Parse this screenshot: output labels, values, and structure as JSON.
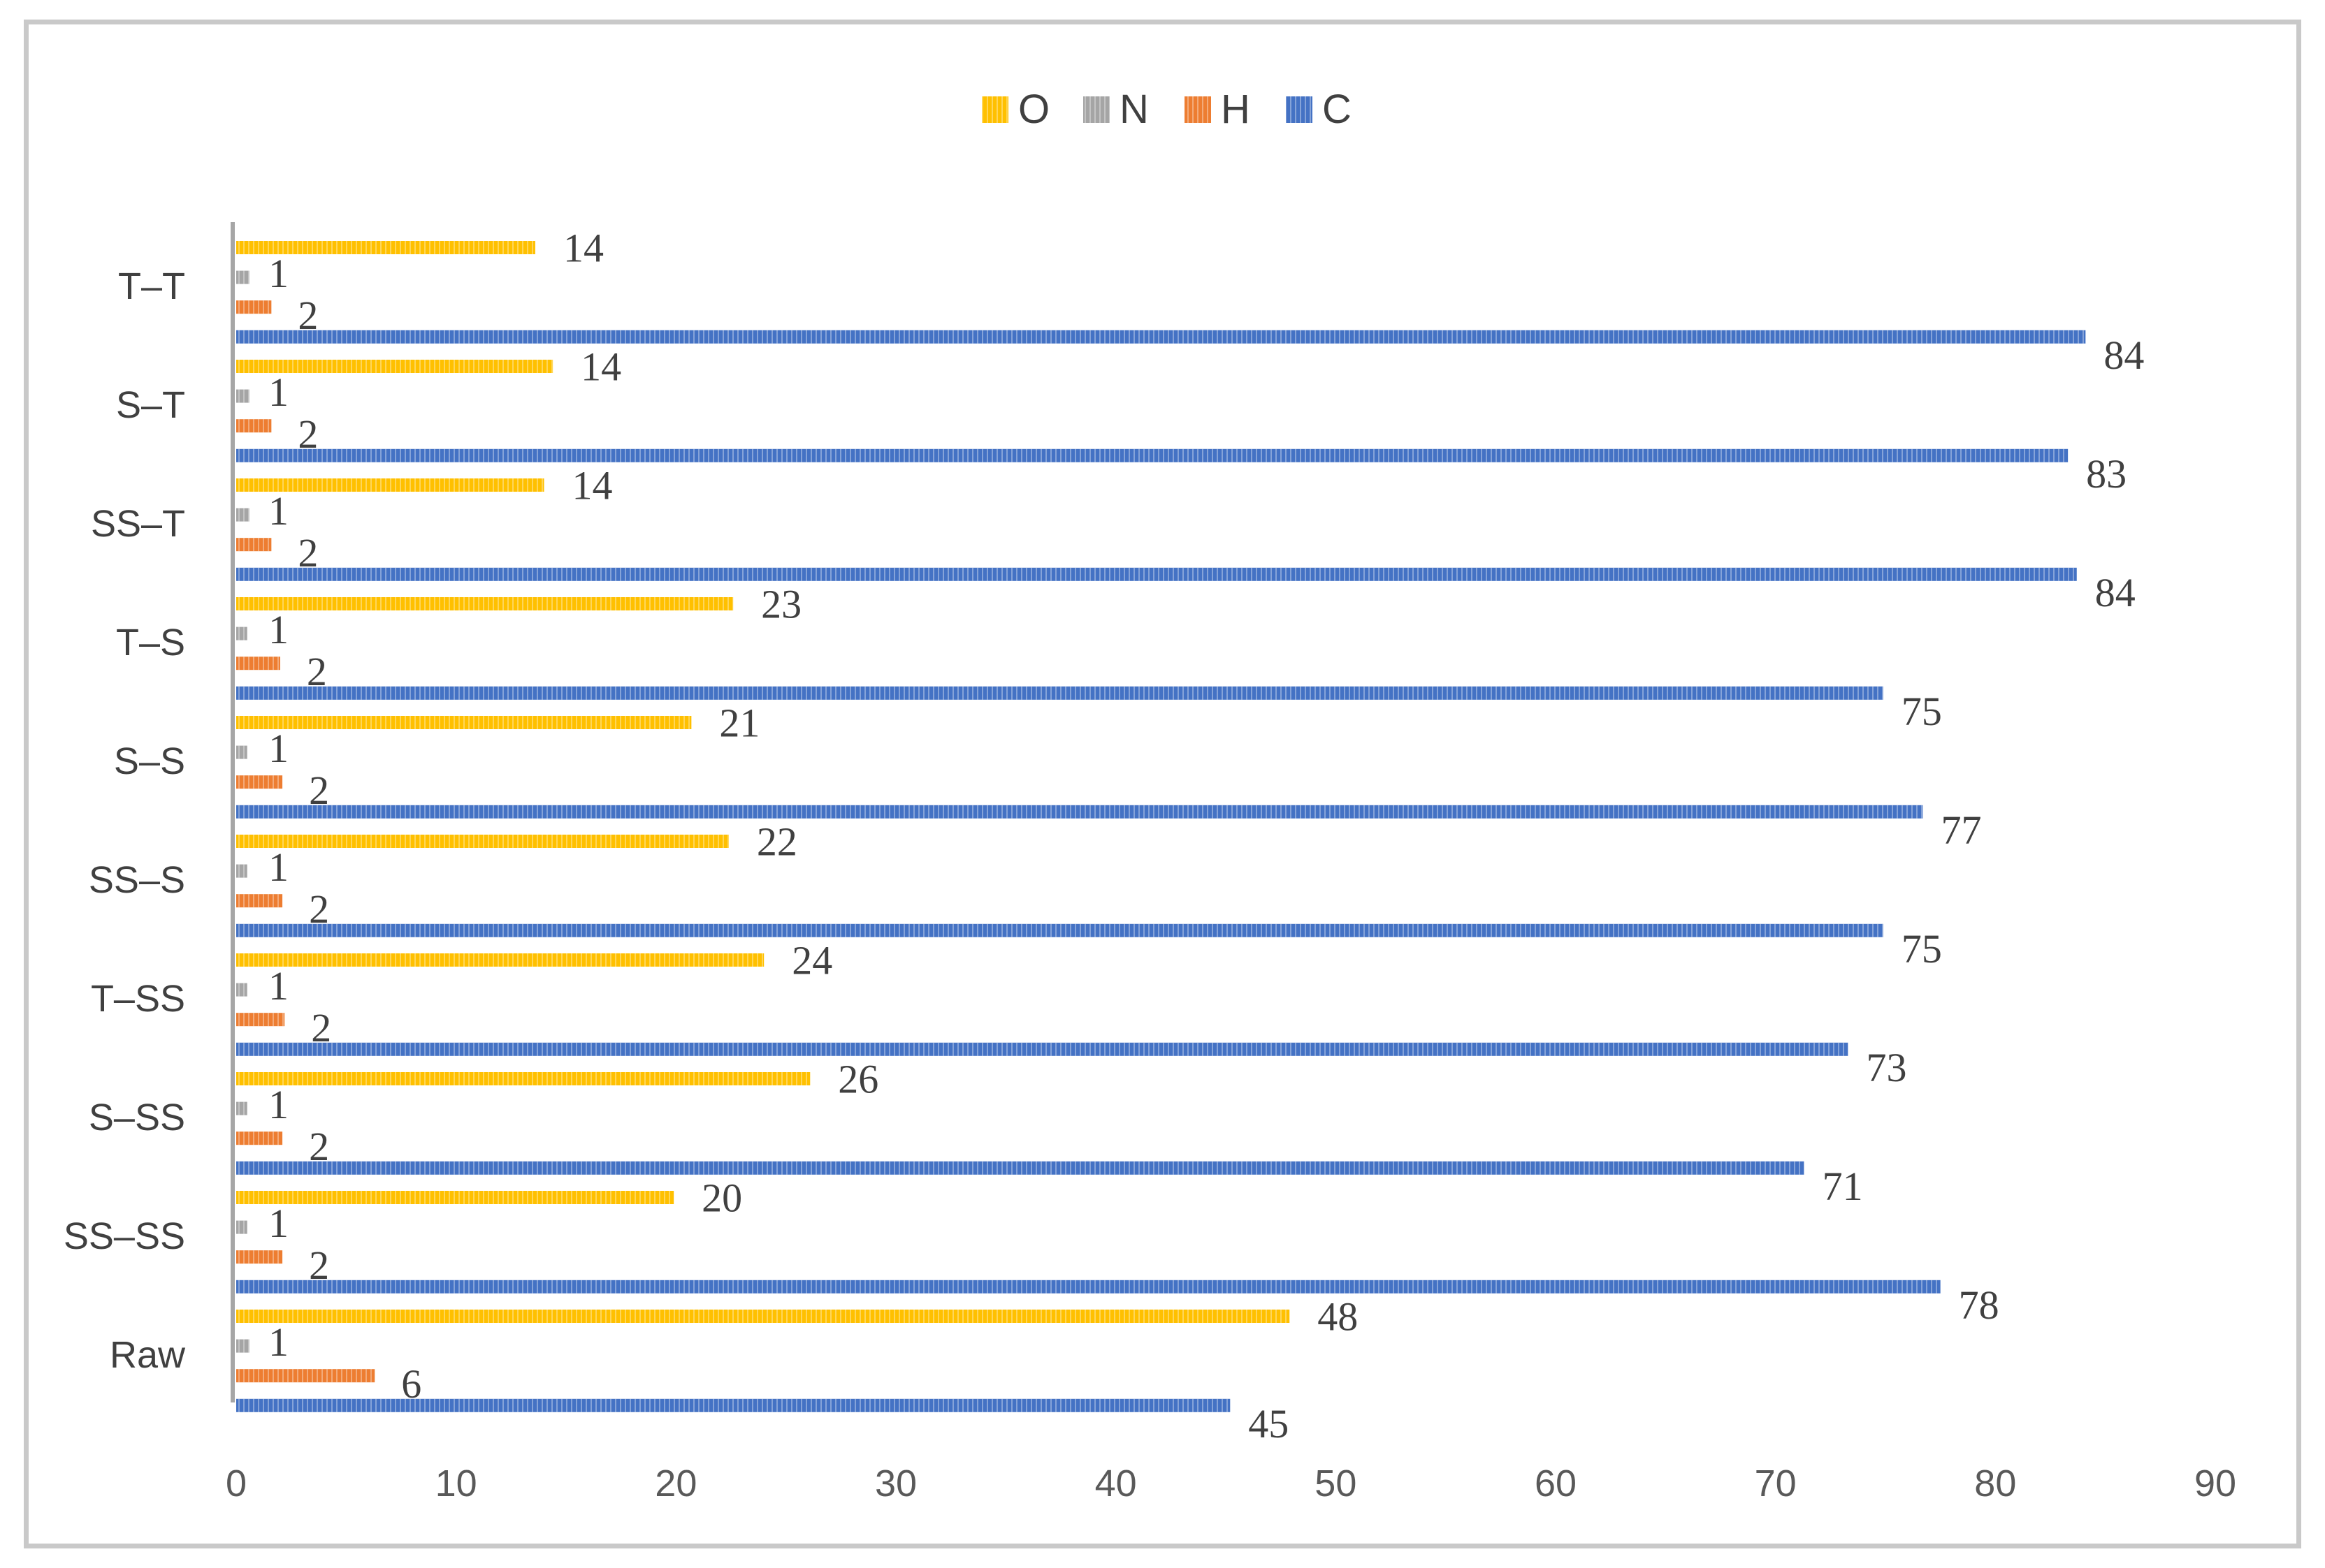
{
  "chart_data": {
    "type": "bar",
    "orientation": "horizontal",
    "title": "",
    "xlabel": "",
    "ylabel": "",
    "categories": [
      "Raw",
      "SS–SS",
      "S–SS",
      "T–SS",
      "SS–S",
      "S–S",
      "T–S",
      "SS–T",
      "S–T",
      "T–T"
    ],
    "series": [
      {
        "name": "C",
        "color": "#4472c4",
        "values": [
          45,
          78,
          71,
          73,
          75,
          77,
          75,
          84,
          83,
          84
        ],
        "exact": [
          45.2,
          77.5,
          71.3,
          73.3,
          74.9,
          76.7,
          74.9,
          83.7,
          83.3,
          84.1
        ]
      },
      {
        "name": "H",
        "color": "#ed7d31",
        "values": [
          6,
          2,
          2,
          2,
          2,
          2,
          2,
          2,
          2,
          2
        ],
        "exact": [
          6.3,
          2.1,
          2.1,
          2.2,
          2.1,
          2.1,
          2.0,
          1.6,
          1.6,
          1.6
        ]
      },
      {
        "name": "N",
        "color": "#a5a5a5",
        "values": [
          1,
          1,
          1,
          1,
          1,
          1,
          1,
          1,
          1,
          1
        ],
        "exact": [
          0.6,
          0.5,
          0.5,
          0.5,
          0.5,
          0.5,
          0.5,
          0.6,
          0.6,
          0.6
        ]
      },
      {
        "name": "O",
        "color": "#ffc000",
        "values": [
          48,
          20,
          26,
          24,
          22,
          21,
          23,
          14,
          14,
          14
        ],
        "exact": [
          47.9,
          19.9,
          26.1,
          24.0,
          22.4,
          20.7,
          22.6,
          14.0,
          14.4,
          13.6
        ]
      }
    ],
    "xlim": [
      0,
      90
    ],
    "xticks": [
      "0",
      "10",
      "20",
      "30",
      "40",
      "50",
      "60",
      "70",
      "80",
      "90"
    ],
    "legend": {
      "position": "top-center",
      "order": [
        "O",
        "N",
        "H",
        "C"
      ]
    },
    "grid": false
  }
}
